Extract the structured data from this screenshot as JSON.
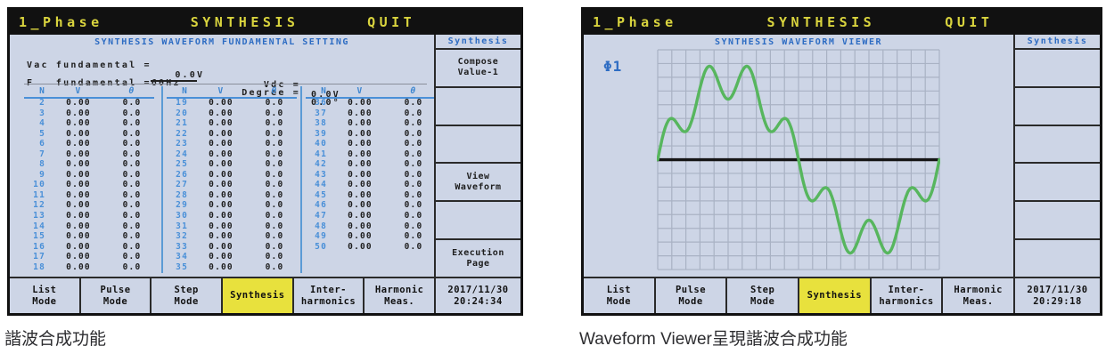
{
  "colors": {
    "screen_bg": "#cdd5e6",
    "titlebar_bg": "#111111",
    "title_yellow": "#d9d43e",
    "accent_blue": "#2d6cc3",
    "table_blue": "#4a90d8",
    "active_yellow": "#e8e13d",
    "wave_green": "#57b65e",
    "grid_line": "#a9b2c4",
    "zero_line": "#161616"
  },
  "screens": {
    "left": {
      "titlebar": {
        "phase": "1_Phase",
        "title": "SYNTHESIS",
        "quit": "QUIT"
      },
      "page_title": "SYNTHESIS WAVEFORM FUNDAMENTAL SETTING",
      "settings": {
        "vac_label": "Vac fundamental =",
        "vac_value": "0.0",
        "vac_unit": "V",
        "vdc_label": "Vdc =",
        "vdc_value": "0.0V",
        "f_label": "F   fundamental =",
        "f_value": "60Hz",
        "degree_label": "Degree =",
        "degree_value": "0.0°"
      },
      "harmonics": {
        "headers": [
          "N",
          "V",
          "θ"
        ],
        "groups": [
          [
            [
              "2",
              "0.00",
              "0.0"
            ],
            [
              "3",
              "0.00",
              "0.0"
            ],
            [
              "4",
              "0.00",
              "0.0"
            ],
            [
              "5",
              "0.00",
              "0.0"
            ],
            [
              "6",
              "0.00",
              "0.0"
            ],
            [
              "7",
              "0.00",
              "0.0"
            ],
            [
              "8",
              "0.00",
              "0.0"
            ],
            [
              "9",
              "0.00",
              "0.0"
            ],
            [
              "10",
              "0.00",
              "0.0"
            ],
            [
              "11",
              "0.00",
              "0.0"
            ],
            [
              "12",
              "0.00",
              "0.0"
            ],
            [
              "13",
              "0.00",
              "0.0"
            ],
            [
              "14",
              "0.00",
              "0.0"
            ],
            [
              "15",
              "0.00",
              "0.0"
            ],
            [
              "16",
              "0.00",
              "0.0"
            ],
            [
              "17",
              "0.00",
              "0.0"
            ],
            [
              "18",
              "0.00",
              "0.0"
            ]
          ],
          [
            [
              "19",
              "0.00",
              "0.0"
            ],
            [
              "20",
              "0.00",
              "0.0"
            ],
            [
              "21",
              "0.00",
              "0.0"
            ],
            [
              "22",
              "0.00",
              "0.0"
            ],
            [
              "23",
              "0.00",
              "0.0"
            ],
            [
              "24",
              "0.00",
              "0.0"
            ],
            [
              "25",
              "0.00",
              "0.0"
            ],
            [
              "26",
              "0.00",
              "0.0"
            ],
            [
              "27",
              "0.00",
              "0.0"
            ],
            [
              "28",
              "0.00",
              "0.0"
            ],
            [
              "29",
              "0.00",
              "0.0"
            ],
            [
              "30",
              "0.00",
              "0.0"
            ],
            [
              "31",
              "0.00",
              "0.0"
            ],
            [
              "32",
              "0.00",
              "0.0"
            ],
            [
              "33",
              "0.00",
              "0.0"
            ],
            [
              "34",
              "0.00",
              "0.0"
            ],
            [
              "35",
              "0.00",
              "0.0"
            ]
          ],
          [
            [
              "36",
              "0.00",
              "0.0"
            ],
            [
              "37",
              "0.00",
              "0.0"
            ],
            [
              "38",
              "0.00",
              "0.0"
            ],
            [
              "39",
              "0.00",
              "0.0"
            ],
            [
              "40",
              "0.00",
              "0.0"
            ],
            [
              "41",
              "0.00",
              "0.0"
            ],
            [
              "42",
              "0.00",
              "0.0"
            ],
            [
              "43",
              "0.00",
              "0.0"
            ],
            [
              "44",
              "0.00",
              "0.0"
            ],
            [
              "45",
              "0.00",
              "0.0"
            ],
            [
              "46",
              "0.00",
              "0.0"
            ],
            [
              "47",
              "0.00",
              "0.0"
            ],
            [
              "48",
              "0.00",
              "0.0"
            ],
            [
              "49",
              "0.00",
              "0.0"
            ],
            [
              "50",
              "0.00",
              "0.0"
            ]
          ]
        ]
      },
      "sidepanel": {
        "header": "Synthesis",
        "keys": [
          "Compose\nValue-1",
          "",
          "",
          "View\nWaveform",
          "",
          "Execution\nPage"
        ]
      },
      "bottombar": {
        "items": [
          "List\nMode",
          "Pulse\nMode",
          "Step\nMode",
          "Synthesis",
          "Inter-\nharmonics",
          "Harmonic\nMeas."
        ],
        "active_index": 3,
        "date": "2017/11/30",
        "time": "20:24:34"
      },
      "caption": "諧波合成功能"
    },
    "right": {
      "titlebar": {
        "phase": "1_Phase",
        "title": "SYNTHESIS",
        "quit": "QUIT"
      },
      "page_title": "SYNTHESIS WAVEFORM VIEWER",
      "waveform": {
        "phase_label": "Φ1",
        "components": [
          {
            "harmonic": 1,
            "amplitude": 1.0
          },
          {
            "harmonic": 7,
            "amplitude": 0.25
          }
        ],
        "cycles": 1,
        "grid_cols": 20,
        "grid_rows": 16,
        "color": "#57b65e"
      },
      "sidepanel": {
        "header": "Synthesis",
        "keys": [
          "",
          "",
          "",
          "",
          "",
          ""
        ]
      },
      "bottombar": {
        "items": [
          "List\nMode",
          "Pulse\nMode",
          "Step\nMode",
          "Synthesis",
          "Inter-\nharmonics",
          "Harmonic\nMeas."
        ],
        "active_index": 3,
        "date": "2017/11/30",
        "time": "20:29:18"
      },
      "caption": "Waveform Viewer呈現諧波合成功能"
    }
  }
}
